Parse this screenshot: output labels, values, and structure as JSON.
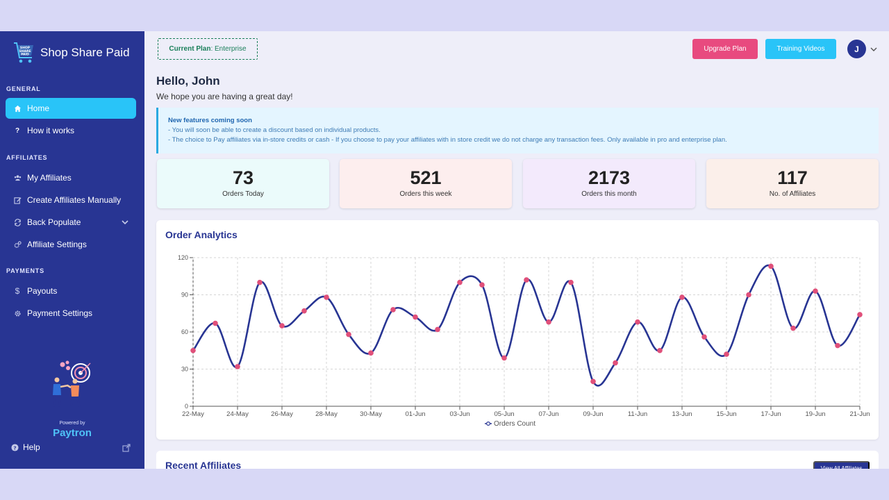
{
  "brand": {
    "name": "Shop Share Paid",
    "logo_text": [
      "SHOP",
      "SHARE",
      "PAID"
    ]
  },
  "sidebar": {
    "sections": {
      "general": "GENERAL",
      "affiliates": "AFFILIATES",
      "payments": "PAYMENTS"
    },
    "items": [
      {
        "label": "Home",
        "icon": "home-icon",
        "active": true
      },
      {
        "label": "How it works",
        "icon": "question-icon"
      },
      {
        "label": "My Affiliates",
        "icon": "users-icon"
      },
      {
        "label": "Create Affiliates Manually",
        "icon": "edit-icon"
      },
      {
        "label": "Back Populate",
        "icon": "sync-icon"
      },
      {
        "label": "Affiliate Settings",
        "icon": "gears-icon"
      },
      {
        "label": "Payouts",
        "icon": "dollar-icon"
      },
      {
        "label": "Payment Settings",
        "icon": "gear-icon"
      }
    ],
    "powered_by": "Powered by",
    "powered_brand": "Paytron",
    "help": "Help"
  },
  "header": {
    "plan_label": "Current Plan",
    "plan_value": ": Enterprise",
    "upgrade": "Upgrade Plan",
    "training": "Training Videos",
    "avatar_initial": "J"
  },
  "greeting": {
    "title": "Hello, John",
    "subtitle": "We hope you are having a great day!"
  },
  "notice": {
    "title": "New features coming soon",
    "lines": [
      "- You will soon be able to create a discount based on individual products.",
      "- The choice to Pay affiliates via in-store credits or cash - If you choose to pay your affiliates with in store credit we do not charge any transaction fees. Only available in pro and enterprise plan."
    ]
  },
  "stats": [
    {
      "value": "73",
      "label": "Orders Today",
      "bg": "#ebfbfb"
    },
    {
      "value": "521",
      "label": "Orders this week",
      "bg": "#fdeeee"
    },
    {
      "value": "2173",
      "label": "Orders this month",
      "bg": "#f3eafc"
    },
    {
      "value": "117",
      "label": "No. of Affiliates",
      "bg": "#fbefea"
    }
  ],
  "analytics_title": "Order Analytics",
  "chart_data": {
    "type": "line",
    "x": [
      "22-May",
      "23-May",
      "24-May",
      "25-May",
      "26-May",
      "27-May",
      "28-May",
      "29-May",
      "30-May",
      "31-May",
      "01-Jun",
      "02-Jun",
      "03-Jun",
      "04-Jun",
      "05-Jun",
      "06-Jun",
      "07-Jun",
      "08-Jun",
      "09-Jun",
      "10-Jun",
      "11-Jun",
      "12-Jun",
      "13-Jun",
      "14-Jun",
      "15-Jun",
      "16-Jun",
      "17-Jun",
      "18-Jun",
      "19-Jun",
      "20-Jun",
      "21-Jun"
    ],
    "tick_labels": [
      "22-May",
      "24-May",
      "26-May",
      "28-May",
      "30-May",
      "01-Jun",
      "03-Jun",
      "05-Jun",
      "07-Jun",
      "09-Jun",
      "11-Jun",
      "13-Jun",
      "15-Jun",
      "17-Jun",
      "19-Jun",
      "21-Jun"
    ],
    "series": [
      {
        "name": "Orders Count",
        "values": [
          45,
          67,
          32,
          100,
          65,
          77,
          88,
          58,
          43,
          78,
          72,
          62,
          100,
          98,
          39,
          102,
          68,
          100,
          20,
          35,
          68,
          45,
          88,
          56,
          42,
          90,
          113,
          63,
          93,
          49,
          74
        ]
      }
    ],
    "ylim": [
      0,
      120
    ],
    "yticks": [
      0,
      30,
      60,
      90,
      120
    ],
    "grid": true,
    "legend": "bottom-center",
    "line_color": "#283593",
    "point_color": "#e0507a"
  },
  "recent": {
    "title": "Recent Affiliates",
    "view_all": "View All Affiliates"
  }
}
